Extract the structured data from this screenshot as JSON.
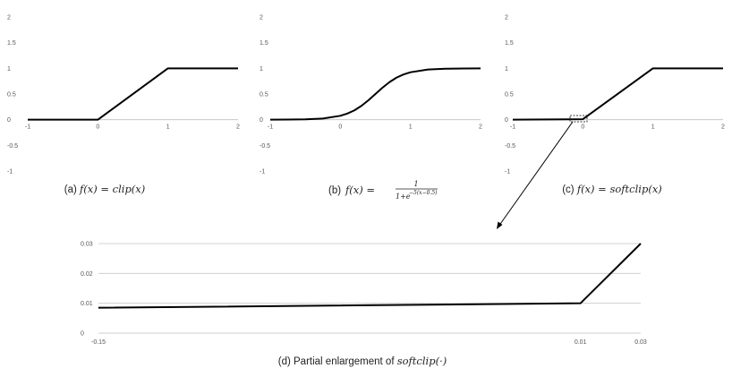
{
  "chart_data": [
    {
      "id": "a",
      "type": "line",
      "caption": {
        "prefix": "(a) ",
        "math": "f(x) = clip(x)"
      },
      "xlim": [
        -1,
        2
      ],
      "ylim": [
        -1,
        2
      ],
      "x_ticks": [
        "-1",
        "0",
        "1",
        "2"
      ],
      "y_ticks": [
        "-1",
        "-0.5",
        "0",
        "0.5",
        "1",
        "1.5",
        "2"
      ],
      "y_tick_values": [
        -1,
        -0.5,
        0,
        0.5,
        1,
        1.5,
        2
      ],
      "x_tick_values": [
        -1,
        0,
        1,
        2
      ],
      "series": [
        {
          "x": [
            -1,
            0,
            1,
            2
          ],
          "y": [
            0,
            0,
            1,
            1
          ],
          "color": "#000000"
        }
      ]
    },
    {
      "id": "b",
      "type": "line",
      "caption": {
        "prefix": "(b) ",
        "math": "f(x) = ",
        "frac_num": "1",
        "frac_den": "1+e",
        "frac_exp": "−5(x−0.5)"
      },
      "xlim": [
        -1,
        2
      ],
      "ylim": [
        -1,
        2
      ],
      "x_ticks": [
        "-1",
        "0",
        "1",
        "2"
      ],
      "y_ticks": [
        "-1",
        "-0.5",
        "0",
        "0.5",
        "1",
        "1.5",
        "2"
      ],
      "y_tick_values": [
        -1,
        -0.5,
        0,
        0.5,
        1,
        1.5,
        2
      ],
      "x_tick_values": [
        -1,
        0,
        1,
        2
      ],
      "series": [
        {
          "x": [
            -1,
            -0.75,
            -0.5,
            -0.25,
            0,
            0.1,
            0.2,
            0.3,
            0.4,
            0.5,
            0.6,
            0.7,
            0.8,
            0.9,
            1,
            1.25,
            1.5,
            1.75,
            2
          ],
          "y": [
            0.001,
            0.002,
            0.007,
            0.023,
            0.076,
            0.119,
            0.182,
            0.269,
            0.378,
            0.5,
            0.622,
            0.731,
            0.818,
            0.881,
            0.924,
            0.977,
            0.993,
            0.998,
            0.999
          ],
          "color": "#000000"
        }
      ]
    },
    {
      "id": "c",
      "type": "line",
      "caption": {
        "prefix": "(c) ",
        "math": "f(x) = softclip(x)"
      },
      "xlim": [
        -1,
        2
      ],
      "ylim": [
        -1,
        2
      ],
      "x_ticks": [
        "-1",
        "0",
        "1",
        "2"
      ],
      "y_ticks": [
        "-1",
        "-0.5",
        "0",
        "0.5",
        "1",
        "1.5",
        "2"
      ],
      "y_tick_values": [
        -1,
        -0.5,
        0,
        0.5,
        1,
        1.5,
        2
      ],
      "x_tick_values": [
        -1,
        0,
        1,
        2
      ],
      "series": [
        {
          "x": [
            -1,
            0,
            1,
            2
          ],
          "y": [
            0,
            0.01,
            1,
            1
          ],
          "color": "#000000"
        }
      ]
    },
    {
      "id": "d",
      "type": "line",
      "caption": {
        "prefix": "(d) Partial enlargement  of ",
        "math": "softclip(·)"
      },
      "xlim": [
        -0.15,
        0.03
      ],
      "ylim": [
        0,
        0.03
      ],
      "x_ticks": [
        "-0.15",
        "0.01",
        "0.03"
      ],
      "x_tick_values": [
        -0.15,
        0.01,
        0.03
      ],
      "y_ticks": [
        "0",
        "0.01",
        "0.02",
        "0.03"
      ],
      "y_tick_values": [
        0,
        0.01,
        0.02,
        0.03
      ],
      "grid": true,
      "series": [
        {
          "x": [
            -0.15,
            0.01,
            0.03
          ],
          "y": [
            0.0085,
            0.01,
            0.03
          ],
          "color": "#000000"
        }
      ]
    }
  ]
}
